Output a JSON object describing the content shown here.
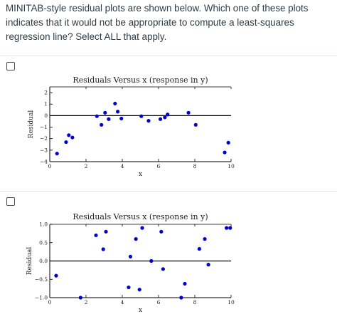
{
  "question": {
    "text": "MINITAB-style residual plots are shown below. Which one of these plots indicates that it would not be appropriate to compute a least-squares regression line? Select ALL that apply."
  },
  "options": [
    {
      "id": "option-1",
      "checked": false,
      "chart_data": {
        "type": "scatter",
        "title": "Residuals Versus x (response in y)",
        "xlabel": "x",
        "ylabel": "Residual",
        "xlim": [
          0,
          10
        ],
        "ylim": [
          -4,
          2.5
        ],
        "xticks": [
          "0",
          "2",
          "4",
          "6",
          "8",
          "10"
        ],
        "yticks": [
          "2",
          "1",
          "0",
          "−1",
          "−2",
          "−3",
          "−4"
        ],
        "reference_line": 0,
        "point_color": "#0000cc",
        "points": [
          [
            0.4,
            -3.3
          ],
          [
            0.9,
            -2.3
          ],
          [
            1.05,
            -1.7
          ],
          [
            1.25,
            -1.9
          ],
          [
            2.6,
            -0.05
          ],
          [
            2.85,
            -0.8
          ],
          [
            3.05,
            0.25
          ],
          [
            3.25,
            -0.3
          ],
          [
            3.6,
            1.05
          ],
          [
            3.75,
            0.35
          ],
          [
            3.95,
            -0.25
          ],
          [
            5.05,
            -0.05
          ],
          [
            5.45,
            -0.45
          ],
          [
            6.1,
            -0.3
          ],
          [
            6.35,
            -0.15
          ],
          [
            6.5,
            0.1
          ],
          [
            7.65,
            0.25
          ],
          [
            8.05,
            -0.8
          ],
          [
            9.65,
            -3.2
          ],
          [
            9.85,
            -2.35
          ]
        ]
      }
    },
    {
      "id": "option-2",
      "checked": false,
      "chart_data": {
        "type": "scatter",
        "title": "Residuals Versus x (response in y)",
        "xlabel": "x",
        "ylabel": "Residual",
        "xlim": [
          0,
          10
        ],
        "ylim": [
          -1.0,
          1.0
        ],
        "xticks": [
          "0",
          "2",
          "4",
          "6",
          "8",
          "10"
        ],
        "yticks": [
          "1.0",
          "0.5",
          "0.0",
          "−0.5",
          "−1.0"
        ],
        "reference_line": 0,
        "point_color": "#0000cc",
        "points": [
          [
            0.35,
            -0.4
          ],
          [
            1.7,
            -1.0
          ],
          [
            2.55,
            0.7
          ],
          [
            2.95,
            0.32
          ],
          [
            3.1,
            0.8
          ],
          [
            4.35,
            -0.72
          ],
          [
            4.45,
            0.12
          ],
          [
            4.75,
            0.6
          ],
          [
            4.95,
            -0.78
          ],
          [
            5.1,
            0.9
          ],
          [
            5.6,
            0.0
          ],
          [
            6.15,
            0.8
          ],
          [
            6.25,
            -0.22
          ],
          [
            7.25,
            -1.0
          ],
          [
            7.45,
            -0.62
          ],
          [
            8.25,
            0.33
          ],
          [
            8.55,
            0.6
          ],
          [
            8.75,
            -0.1
          ],
          [
            9.75,
            0.9
          ],
          [
            9.95,
            0.9
          ]
        ]
      }
    }
  ]
}
